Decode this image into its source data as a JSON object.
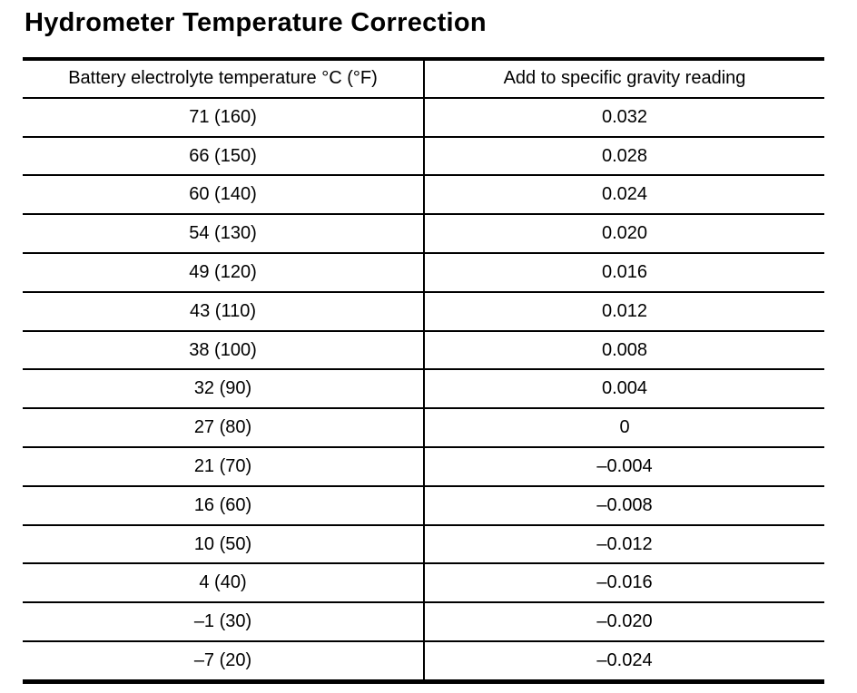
{
  "page": {
    "title": "Hydrometer Temperature Correction"
  },
  "table": {
    "headers": [
      "Battery electrolyte temperature °C (°F)",
      "Add to specific gravity reading"
    ],
    "rows": [
      {
        "temperature": "71 (160)",
        "correction": "0.032"
      },
      {
        "temperature": "66 (150)",
        "correction": "0.028"
      },
      {
        "temperature": "60 (140)",
        "correction": "0.024"
      },
      {
        "temperature": "54 (130)",
        "correction": "0.020"
      },
      {
        "temperature": "49 (120)",
        "correction": "0.016"
      },
      {
        "temperature": "43 (110)",
        "correction": "0.012"
      },
      {
        "temperature": "38 (100)",
        "correction": "0.008"
      },
      {
        "temperature": "32 (90)",
        "correction": "0.004"
      },
      {
        "temperature": "27 (80)",
        "correction": "0"
      },
      {
        "temperature": "21 (70)",
        "correction": "–0.004"
      },
      {
        "temperature": "16 (60)",
        "correction": "–0.008"
      },
      {
        "temperature": "10 (50)",
        "correction": "–0.012"
      },
      {
        "temperature": "4 (40)",
        "correction": "–0.016"
      },
      {
        "temperature": "–1 (30)",
        "correction": "–0.020"
      },
      {
        "temperature": "–7 (20)",
        "correction": "–0.024"
      }
    ]
  },
  "colors": {
    "text": "#000000",
    "background": "#ffffff",
    "border": "#000000"
  }
}
